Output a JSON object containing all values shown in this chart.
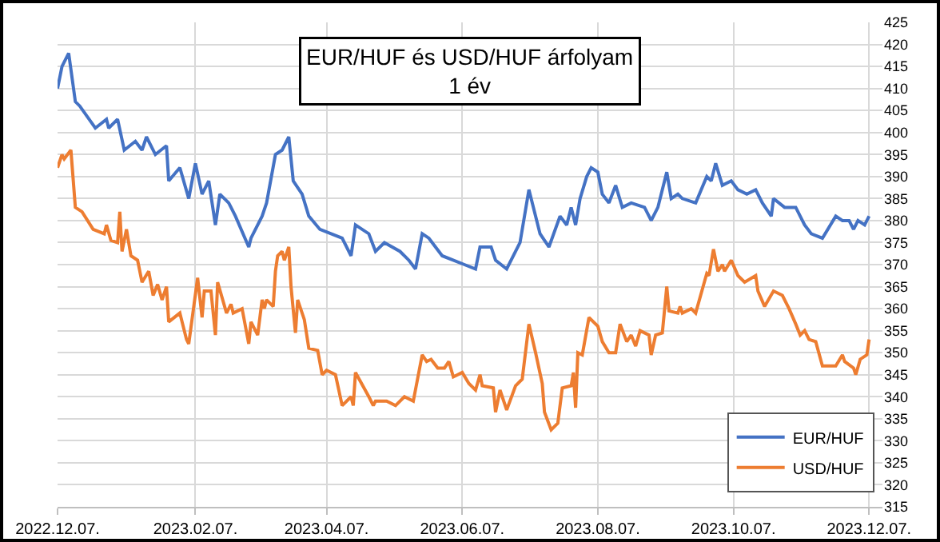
{
  "chart_data": {
    "type": "line",
    "title": "EUR/HUF és USD/HUF árfolyam",
    "subtitle": "1 év",
    "series": [
      {
        "name": "EUR/HUF",
        "color": "#4472c4",
        "x": [
          "2022-12-07",
          "2022-12-09",
          "2022-12-12",
          "2022-12-15",
          "2022-12-17",
          "2022-12-24",
          "2022-12-29",
          "2022-12-30",
          "2023-01-03",
          "2023-01-06",
          "2023-01-11",
          "2023-01-14",
          "2023-01-16",
          "2023-01-20",
          "2023-01-25",
          "2023-01-26",
          "2023-01-31",
          "2023-02-04",
          "2023-02-07",
          "2023-02-10",
          "2023-02-13",
          "2023-02-16",
          "2023-02-18",
          "2023-02-22",
          "2023-02-25",
          "2023-03-03",
          "2023-03-04",
          "2023-03-09",
          "2023-03-11",
          "2023-03-15",
          "2023-03-18",
          "2023-03-21",
          "2023-03-23",
          "2023-03-27",
          "2023-03-30",
          "2023-04-04",
          "2023-04-14",
          "2023-04-18",
          "2023-04-20",
          "2023-04-26",
          "2023-04-29",
          "2023-05-03",
          "2023-05-10",
          "2023-05-14",
          "2023-05-17",
          "2023-05-20",
          "2023-05-23",
          "2023-05-29",
          "2023-06-08",
          "2023-06-13",
          "2023-06-15",
          "2023-06-20",
          "2023-06-22",
          "2023-06-27",
          "2023-07-03",
          "2023-07-07",
          "2023-07-12",
          "2023-07-16",
          "2023-07-21",
          "2023-07-24",
          "2023-07-26",
          "2023-07-28",
          "2023-07-30",
          "2023-08-02",
          "2023-08-04",
          "2023-08-07",
          "2023-08-09",
          "2023-08-12",
          "2023-08-15",
          "2023-08-18",
          "2023-08-22",
          "2023-08-28",
          "2023-08-31",
          "2023-09-03",
          "2023-09-07",
          "2023-09-09",
          "2023-09-12",
          "2023-09-14",
          "2023-09-20",
          "2023-09-25",
          "2023-09-27",
          "2023-09-29",
          "2023-10-02",
          "2023-10-06",
          "2023-10-09",
          "2023-10-13",
          "2023-10-17",
          "2023-10-20",
          "2023-10-24",
          "2023-10-25",
          "2023-10-30",
          "2023-11-04",
          "2023-11-08",
          "2023-11-11",
          "2023-11-16",
          "2023-11-22",
          "2023-11-25",
          "2023-11-28",
          "2023-11-30",
          "2023-12-02",
          "2023-12-05",
          "2023-12-07"
        ],
        "values": [
          410,
          415,
          418,
          407,
          406,
          401,
          403,
          401,
          403,
          396,
          398,
          396,
          399,
          395,
          397,
          389,
          392,
          385,
          393,
          386,
          389,
          379,
          386,
          384,
          381,
          374,
          376,
          381,
          384,
          395,
          396,
          399,
          389,
          386,
          381,
          378,
          376,
          372,
          379,
          377,
          373,
          375,
          373,
          371,
          369,
          377,
          376,
          372,
          370,
          369,
          374,
          374,
          371,
          369,
          375,
          387,
          377,
          374,
          381,
          379,
          383,
          379,
          385,
          390,
          392,
          391,
          386,
          384,
          388,
          383,
          384,
          383,
          380,
          383,
          391,
          385,
          386,
          385,
          384,
          390,
          389,
          393,
          388,
          389,
          387,
          386,
          387,
          384,
          381,
          385,
          383,
          383,
          379,
          377,
          376,
          381,
          380,
          380,
          378,
          380,
          379,
          381
        ]
      },
      {
        "name": "USD/HUF",
        "color": "#ed7d31",
        "x": [
          "2022-12-07",
          "2022-12-09",
          "2022-12-10",
          "2022-12-13",
          "2022-12-15",
          "2022-12-18",
          "2022-12-23",
          "2022-12-28",
          "2022-12-29",
          "2022-12-31",
          "2023-01-03",
          "2023-01-04",
          "2023-01-05",
          "2023-01-07",
          "2023-01-09",
          "2023-01-12",
          "2023-01-14",
          "2023-01-17",
          "2023-01-19",
          "2023-01-21",
          "2023-01-23",
          "2023-01-25",
          "2023-01-26",
          "2023-01-31",
          "2023-02-03",
          "2023-02-04",
          "2023-02-08",
          "2023-02-10",
          "2023-02-11",
          "2023-02-14",
          "2023-02-16",
          "2023-02-17",
          "2023-02-21",
          "2023-02-23",
          "2023-02-24",
          "2023-02-28",
          "2023-03-03",
          "2023-03-04",
          "2023-03-07",
          "2023-03-09",
          "2023-03-10",
          "2023-03-11",
          "2023-03-14",
          "2023-03-15",
          "2023-03-16",
          "2023-03-18",
          "2023-03-19",
          "2023-03-21",
          "2023-03-22",
          "2023-03-24",
          "2023-03-25",
          "2023-03-28",
          "2023-03-30",
          "2023-04-03",
          "2023-04-05",
          "2023-04-07",
          "2023-04-11",
          "2023-04-14",
          "2023-04-18",
          "2023-04-19",
          "2023-04-20",
          "2023-04-26",
          "2023-04-28",
          "2023-04-29",
          "2023-05-04",
          "2023-05-08",
          "2023-05-12",
          "2023-05-16",
          "2023-05-20",
          "2023-05-22",
          "2023-05-24",
          "2023-05-27",
          "2023-05-30",
          "2023-06-01",
          "2023-06-03",
          "2023-06-07",
          "2023-06-10",
          "2023-06-13",
          "2023-06-15",
          "2023-06-16",
          "2023-06-21",
          "2023-06-22",
          "2023-06-24",
          "2023-06-27",
          "2023-07-01",
          "2023-07-04",
          "2023-07-07",
          "2023-07-10",
          "2023-07-13",
          "2023-07-14",
          "2023-07-17",
          "2023-07-20",
          "2023-07-22",
          "2023-07-26",
          "2023-07-27",
          "2023-07-28",
          "2023-07-29",
          "2023-07-31",
          "2023-08-03",
          "2023-08-07",
          "2023-08-09",
          "2023-08-12",
          "2023-08-15",
          "2023-08-17",
          "2023-08-20",
          "2023-08-22",
          "2023-08-24",
          "2023-08-26",
          "2023-08-30",
          "2023-08-31",
          "2023-09-02",
          "2023-09-05",
          "2023-09-07",
          "2023-09-08",
          "2023-09-12",
          "2023-09-13",
          "2023-09-14",
          "2023-09-18",
          "2023-09-20",
          "2023-09-25",
          "2023-09-26",
          "2023-09-28",
          "2023-09-30",
          "2023-10-02",
          "2023-10-03",
          "2023-10-06",
          "2023-10-09",
          "2023-10-12",
          "2023-10-17",
          "2023-10-18",
          "2023-10-21",
          "2023-10-25",
          "2023-10-29",
          "2023-11-01",
          "2023-11-04",
          "2023-11-06",
          "2023-11-08",
          "2023-11-10",
          "2023-11-13",
          "2023-11-16",
          "2023-11-19",
          "2023-11-22",
          "2023-11-25",
          "2023-11-26",
          "2023-11-30",
          "2023-12-01",
          "2023-12-03",
          "2023-12-06",
          "2023-12-07"
        ],
        "values": [
          392,
          395,
          394,
          396,
          383,
          382,
          378,
          377,
          379,
          375.5,
          375,
          382,
          373,
          378,
          372,
          371,
          366,
          368.5,
          363,
          365.5,
          362,
          365,
          357,
          359,
          353,
          352,
          367,
          358,
          364,
          364,
          354,
          366,
          359,
          361,
          359,
          360,
          352,
          357,
          354,
          362,
          360,
          362,
          360.5,
          368.5,
          372,
          373,
          371,
          374,
          365,
          354.5,
          362,
          357.5,
          351,
          350.5,
          345,
          346,
          345,
          338,
          340,
          338,
          345.5,
          340,
          338,
          339,
          339,
          338,
          340,
          339,
          349.5,
          348,
          348.5,
          346.5,
          346.5,
          348,
          344.5,
          345.5,
          343,
          341.5,
          345,
          342.5,
          342,
          336.5,
          341.5,
          337,
          342.5,
          344,
          356.5,
          350,
          343,
          336.5,
          332.5,
          334,
          342,
          342.5,
          345.5,
          337.5,
          350,
          349.5,
          358,
          356,
          352.5,
          350,
          350,
          356.5,
          352.5,
          354,
          351.5,
          355,
          354,
          349.5,
          354,
          354.5,
          365,
          359.5,
          359,
          360.5,
          359,
          360,
          359,
          368,
          367.5,
          373.5,
          368.5,
          370,
          368.5,
          371,
          367.5,
          366,
          367.5,
          364,
          360.5,
          364,
          363,
          360,
          356.5,
          354,
          355,
          353,
          352.5,
          347,
          347,
          347,
          349.5,
          348,
          346.5,
          345,
          348.5,
          349.5,
          353
        ]
      }
    ],
    "xlim": [
      "2022-12-07",
      "2023-12-13"
    ],
    "xticks": [
      {
        "value": "2022-12-07",
        "label": "2022.12.07."
      },
      {
        "value": "2023-02-07",
        "label": "2023.02.07."
      },
      {
        "value": "2023-04-07",
        "label": "2023.04.07."
      },
      {
        "value": "2023-06-07",
        "label": "2023.06.07."
      },
      {
        "value": "2023-08-07",
        "label": "2023.08.07."
      },
      {
        "value": "2023-10-07",
        "label": "2023.10.07."
      },
      {
        "value": "2023-12-07",
        "label": "2023.12.07."
      }
    ],
    "ylim": [
      315,
      425
    ],
    "yticks": [
      315,
      320,
      325,
      330,
      335,
      340,
      345,
      350,
      355,
      360,
      365,
      370,
      375,
      380,
      385,
      390,
      395,
      400,
      405,
      410,
      415,
      420,
      425
    ],
    "grid": true,
    "legend": "bottom right",
    "marker": "none",
    "line_style": "solid"
  }
}
